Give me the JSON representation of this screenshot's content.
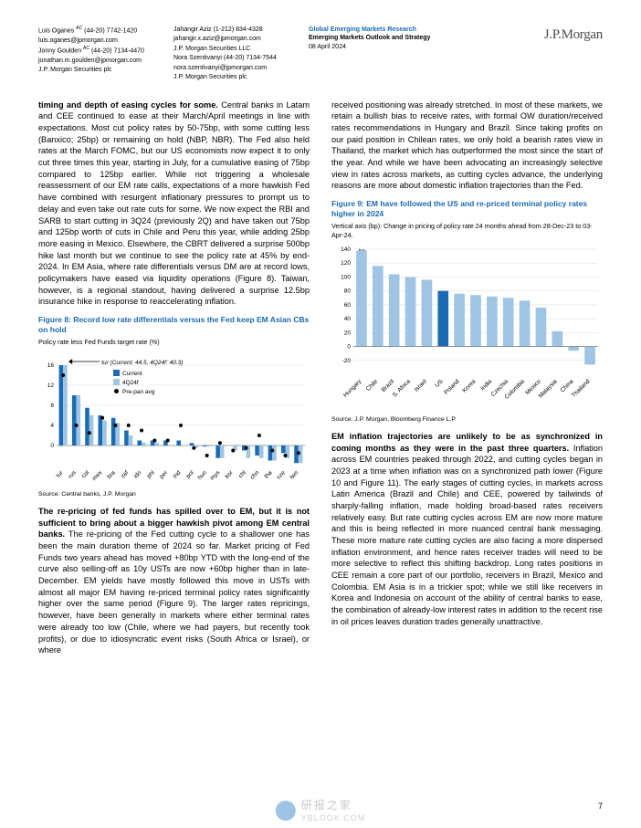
{
  "header": {
    "contacts": [
      {
        "name": "Luis Oganes",
        "sup": "AC",
        "phone": "(44-20) 7742-1420",
        "email": "luis.oganes@jpmorgan.com",
        "org": "J.P. Morgan Securities plc"
      },
      {
        "name": "Jonny Goulden",
        "sup": "AC",
        "phone": "(44-20) 7134-4470",
        "email": "jonathan.m.goulden@jpmorgan.com",
        "org": "J.P. Morgan Securities plc"
      },
      {
        "name": "Jahangir Aziz",
        "sup": "",
        "phone": "(1-212) 834-4328",
        "email": "jahangir.x.aziz@jpmorgan.com",
        "org": "J.P. Morgan Securities LLC"
      },
      {
        "name": "Nora Szentivanyi",
        "sup": "",
        "phone": "(44-20) 7134-7544",
        "email": "nora.szentivanyi@jpmorgan.com",
        "org": "J.P. Morgan Securities plc"
      }
    ],
    "category": "Global Emerging Markets Research",
    "title": "Emerging Markets Outlook and Strategy",
    "date": "08 April 2024",
    "logo": "J.P.Morgan"
  },
  "left": {
    "p1_bold": "timing and depth of easing cycles for some.",
    "p1": " Central banks in Latam and CEE continued to ease at their March/April meetings in line with expectations. Most cut policy rates by 50-75bp, with some cutting less (Banxico; 25bp) or remaining on hold (NBP, NBR). The Fed also held rates at the March FOMC, but our US economists now expect it to only cut three times this year, starting in July, for a cumulative easing of 75bp compared to 125bp earlier. While not triggering a wholesale reassessment of our EM rate calls, expectations of a more hawkish Fed have combined with resurgent inflationary pressures to prompt us to delay and even take out rate cuts for some. We now expect the RBI and SARB to start cutting in 3Q24 (previously 2Q) and have taken out 75bp and 125bp worth of cuts in Chile and Peru this year, while adding 25bp more easing in Mexico. Elsewhere, the CBRT delivered a surprise 500bp hike last month but we continue to see the policy rate at 45% by end-2024. In EM Asia, where rate differentials versus DM are at record lows, policymakers have eased via liquidity operations (Figure 8). Taiwan, however, is a regional standout, having delivered a surprise 12.5bp insurance hike in response to reaccelerating inflation.",
    "fig8_title": "Figure 8: Record low rate differentials versus the Fed keep EM Asian CBs on hold",
    "fig8_sub": "Policy rate less Fed Funds target rate (%)",
    "fig8_callout": "tur (Current: 44.5, 4Q24f: 40.3)",
    "fig8_source": "Source: Central banks, J.P. Morgan",
    "fig8": {
      "type": "grouped-bar-with-markers",
      "categories": [
        "tur",
        "rus",
        "col",
        "mex",
        "bra",
        "zaf",
        "idn",
        "phl",
        "per",
        "ind",
        "pol",
        "hun",
        "mys",
        "kor",
        "chl",
        "chn",
        "tha",
        "cze",
        "twn"
      ],
      "series": {
        "current": [
          16,
          10.0,
          7.5,
          6.0,
          5.5,
          3.0,
          1.0,
          1.0,
          1.0,
          1.0,
          0.5,
          -0.2,
          -2.5,
          0.0,
          -1.0,
          -2.0,
          -3.0,
          -1.5,
          -3.5
        ],
        "q4f": [
          16,
          10.0,
          6.0,
          5.0,
          4.5,
          2.0,
          0.6,
          0.6,
          0.0,
          0.0,
          -0.5,
          -0.2,
          -2.5,
          -1.0,
          -2.5,
          -2.5,
          -3.0,
          -2.5,
          -3.5
        ],
        "prepan": [
          14,
          4.0,
          2.5,
          5.5,
          4.0,
          4.0,
          3.0,
          1.0,
          1.0,
          4.0,
          -0.5,
          -2.0,
          0.5,
          -1.0,
          -0.5,
          2.0,
          -1.0,
          -2.0,
          -1.5
        ]
      },
      "colors": {
        "current": "#1a6bb3",
        "q4f": "#9fc4e4",
        "prepan": "#000000"
      },
      "ylim": [
        -4,
        16
      ],
      "ytick": [
        0,
        4,
        8,
        12,
        16
      ],
      "axis_fontsize": 6.5,
      "background": "#ffffff",
      "grid_color": "#dddddd"
    },
    "legend": {
      "current": "Current",
      "q4f": "4Q24f",
      "prepan": "Pre-pan avg"
    },
    "p2_bold": "The re-pricing of fed funds has spilled over to EM, but it is not sufficient to bring about a bigger hawkish pivot among EM central banks.",
    "p2": " The re-pricing of the Fed cutting cycle to a shallower one has been the main duration theme of 2024 so far. Market pricing of Fed Funds two years ahead has moved +80bp YTD with the long-end of the curve also selling-off as 10y USTs are now +60bp higher than in late-December. EM yields have mostly followed this move in USTs with almost all major EM having re-priced terminal policy rates significantly higher over the same period (Figure 9). The larger rates repricings, however, have been generally in markets where either terminal rates were already too low (Chile, where we had payers, but recently took profits), or due to idiosyncratic event risks (South Africa or Israel), or where"
  },
  "right": {
    "p1": "received positioning was already stretched. In most of these markets, we retain a bullish bias to receive rates, with formal OW duration/received rates recommendations in Hungary and Brazil. Since taking profits on our paid position in Chilean rates, we only hold a bearish rates view in Thailand, the market which has outperformed the most since the start of the year. And while we have been advocating an increasingly selective view in rates across markets, as cutting cycles advance, the underlying reasons are more about domestic inflation trajectories than the Fed.",
    "fig9_title": "Figure 9: EM have followed the US and re-priced terminal policy rates higher in 2024",
    "fig9_sub": "Vertical axis (bp): Change in pricing of policy rate 24 months ahead from 28-Dec-23 to 03-Apr-24.",
    "fig9_source": "Source: J.P. Morgan, Bloomberg Finance L.P.",
    "fig9": {
      "type": "bar",
      "categories": [
        "Hungary",
        "Chile",
        "Brazil",
        "S. Africa",
        "Israel",
        "US",
        "Poland",
        "Korea",
        "India",
        "Czechia",
        "Colombia",
        "Mexico",
        "Malaysia",
        "China",
        "Thailand"
      ],
      "values": [
        138,
        116,
        104,
        100,
        96,
        80,
        76,
        74,
        72,
        70,
        66,
        56,
        22,
        -6,
        -26
      ],
      "highlight_idx": 5,
      "colors": {
        "normal": "#9fc4e4",
        "highlight": "#1a6bb3"
      },
      "ylim": [
        -40,
        140
      ],
      "ytick": [
        -20,
        0,
        20,
        40,
        60,
        80,
        100,
        120,
        140
      ],
      "label_suffix": "bp",
      "axis_fontsize": 6.5,
      "background": "#ffffff",
      "grid_color": "#dddddd"
    },
    "p2_bold": "EM inflation trajectories are unlikely to be as synchronized in coming months as they were in the past three quarters.",
    "p2": " Inflation across EM countries peaked through 2022, and cutting cycles began in 2023 at a time when inflation was on a synchronized path lower (Figure 10 and Figure 11). The early stages of cutting cycles, in markets across Latin America (Brazil and Chile) and CEE, powered by tailwinds of sharply-falling inflation, made holding broad-based rates receivers relatively easy. But rate cutting cycles across EM are now more mature and this is being reflected in more nuanced central bank messaging. These more mature rate cutting cycles are also facing a more dispersed inflation environment, and hence rates receiver trades will need to be more selective to reflect this shifting backdrop. Long rates positions in CEE remain a core part of our portfolio, receivers in Brazil, Mexico and Colombia. EM Asia is in a trickier spot; while we still like receivers in Korea and Indonesia on account of the ability of central banks to ease, the combination of already-low interest rates in addition to the recent rise in oil prices leaves duration trades generally unattractive."
  },
  "page_number": "7",
  "watermark": {
    "big": "研报之家",
    "sub": "YBLOOK.COM"
  }
}
